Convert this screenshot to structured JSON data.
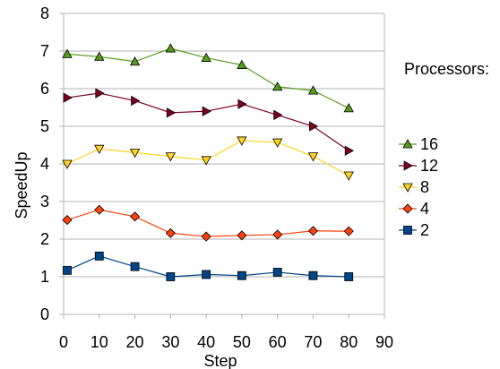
{
  "chart_data": {
    "type": "line",
    "xlabel": "Step",
    "ylabel": "SpeedUp",
    "xlim": [
      0,
      90
    ],
    "ylim": [
      0,
      8
    ],
    "xticks": [
      0,
      10,
      20,
      30,
      40,
      50,
      60,
      70,
      80,
      90
    ],
    "yticks": [
      0,
      1,
      2,
      3,
      4,
      5,
      6,
      7,
      8
    ],
    "grid": "horizontal",
    "legend_title": "Processors:",
    "legend_position": "right",
    "x": [
      1,
      10,
      20,
      30,
      40,
      50,
      60,
      70,
      80
    ],
    "series": [
      {
        "name": "16",
        "marker": "triangle-up",
        "color": "#579d1c",
        "values": [
          6.92,
          6.85,
          6.72,
          7.07,
          6.82,
          6.63,
          6.05,
          5.95,
          5.48
        ]
      },
      {
        "name": "12",
        "marker": "triangle-right",
        "color": "#7e0021",
        "values": [
          5.76,
          5.88,
          5.68,
          5.36,
          5.4,
          5.59,
          5.3,
          5.0,
          4.35
        ]
      },
      {
        "name": "8",
        "marker": "triangle-down",
        "color": "#ffd320",
        "values": [
          4.0,
          4.4,
          4.3,
          4.2,
          4.1,
          4.62,
          4.57,
          4.2,
          3.69
        ]
      },
      {
        "name": "4",
        "marker": "diamond",
        "color": "#ff420e",
        "values": [
          2.51,
          2.78,
          2.6,
          2.16,
          2.07,
          2.1,
          2.12,
          2.22,
          2.21
        ]
      },
      {
        "name": "2",
        "marker": "square",
        "color": "#004586",
        "values": [
          1.17,
          1.55,
          1.27,
          1.0,
          1.06,
          1.03,
          1.12,
          1.03,
          1.0
        ]
      }
    ]
  }
}
